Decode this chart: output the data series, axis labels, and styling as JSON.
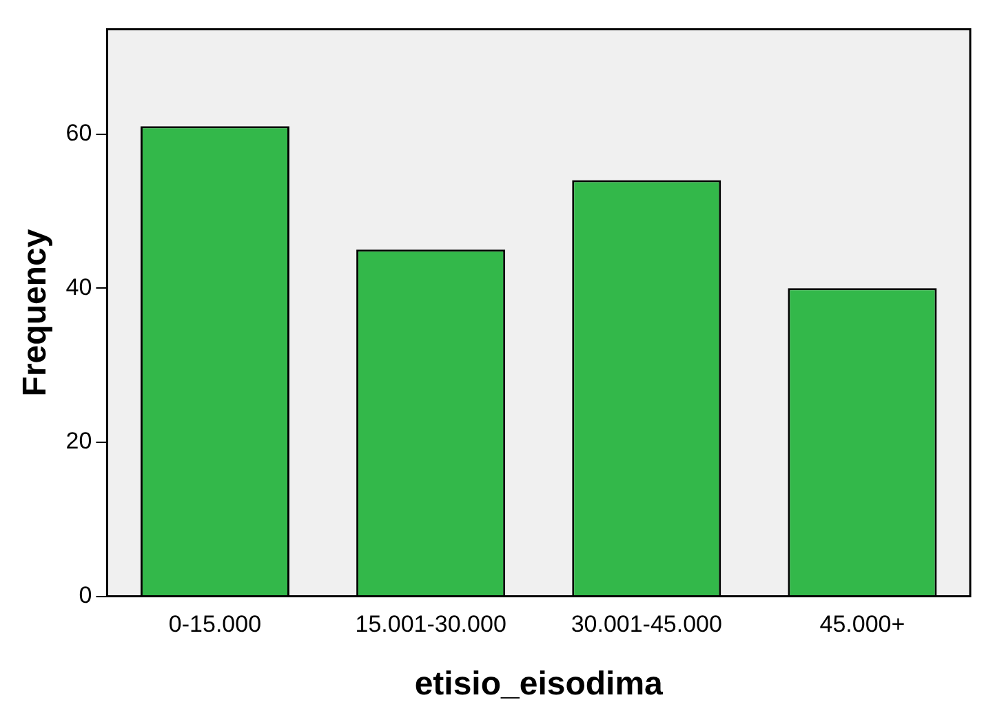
{
  "chart_data": {
    "type": "bar",
    "xlabel": "etisio_eisodima",
    "ylabel": "Frequency",
    "categories": [
      "0-15.000",
      "15.001-30.000",
      "30.001-45.000",
      "45.000+"
    ],
    "values": [
      61,
      45,
      54,
      40
    ],
    "color": "#33b84a",
    "ylim": [
      0,
      73.6
    ],
    "yticks": [
      0,
      20,
      40,
      60
    ],
    "grid": false,
    "legend": false
  }
}
